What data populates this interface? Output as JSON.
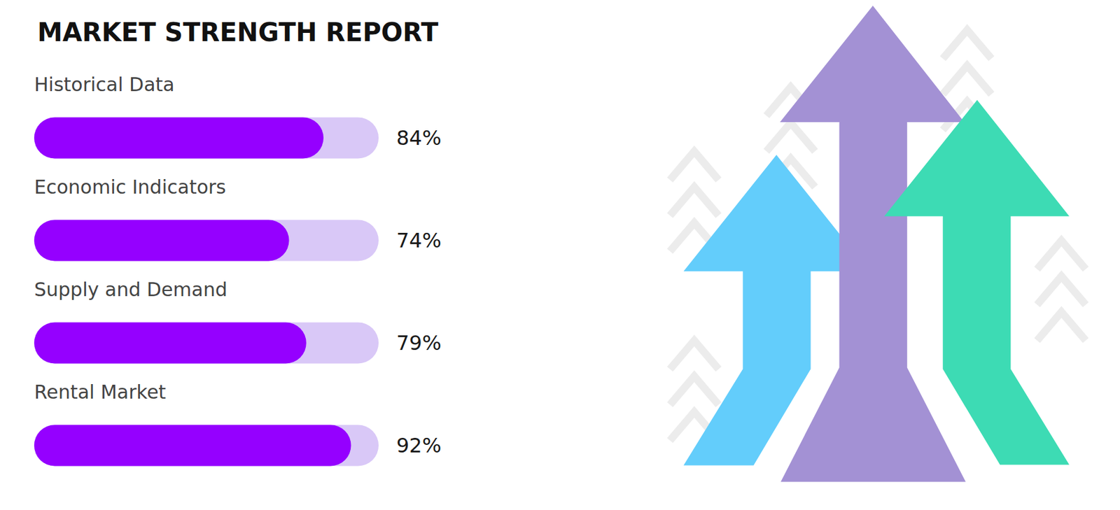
{
  "chart_data": {
    "type": "bar",
    "title": "MARKET STRENGTH REPORT",
    "orientation": "horizontal",
    "categories": [
      "Historical Data",
      "Economic Indicators",
      "Supply and Demand",
      "Rental Market"
    ],
    "values": [
      84,
      74,
      79,
      92
    ],
    "value_labels": [
      "84%",
      "74%",
      "79%",
      "92%"
    ],
    "color": "#9500ff",
    "xlim": [
      0,
      100
    ],
    "grid": false,
    "data_labels": true,
    "tick_labels": false
  }
}
